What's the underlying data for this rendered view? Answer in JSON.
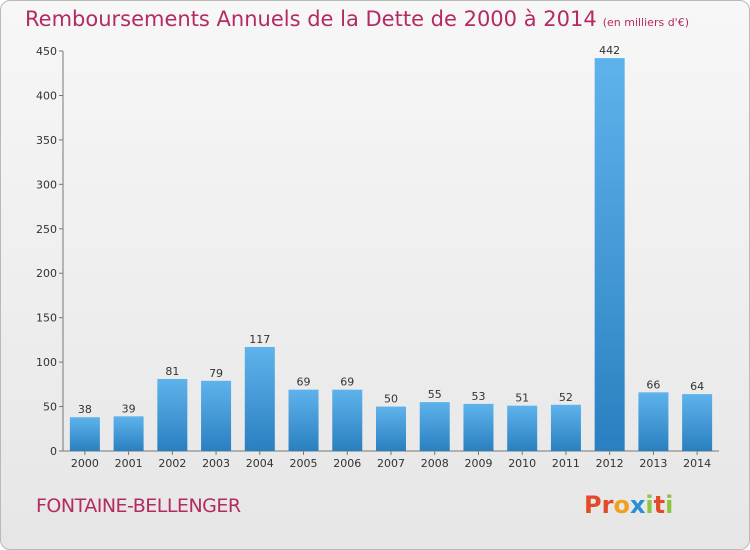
{
  "header": {
    "title": "Remboursements Annuels de la Dette de 2000 à 2014",
    "unit": "(en milliers d'€)"
  },
  "footer": {
    "commune": "FONTAINE-BELLENGER",
    "logo": "Proxiti"
  },
  "colors": {
    "title": "#b42a64",
    "bar_top": "#5fb3ec",
    "bar_bottom": "#2a7fc0",
    "logo_letters": [
      "#e24a2a",
      "#e24a2a",
      "#f0a020",
      "#2a8fd6",
      "#8cc63f",
      "#e24a2a",
      "#8cc63f"
    ]
  },
  "chart_data": {
    "type": "bar",
    "title": "Remboursements Annuels de la Dette de 2000 à 2014",
    "categories": [
      "2000",
      "2001",
      "2002",
      "2003",
      "2004",
      "2005",
      "2006",
      "2007",
      "2008",
      "2009",
      "2010",
      "2011",
      "2012",
      "2013",
      "2014"
    ],
    "values": [
      38,
      39,
      81,
      79,
      117,
      69,
      69,
      50,
      55,
      53,
      51,
      52,
      442,
      66,
      64
    ],
    "ylim": [
      0,
      450
    ],
    "yticks": [
      0,
      50,
      100,
      150,
      200,
      250,
      300,
      350,
      400,
      450
    ],
    "xlabel": "",
    "ylabel": "",
    "grid": false,
    "legend": "none"
  }
}
